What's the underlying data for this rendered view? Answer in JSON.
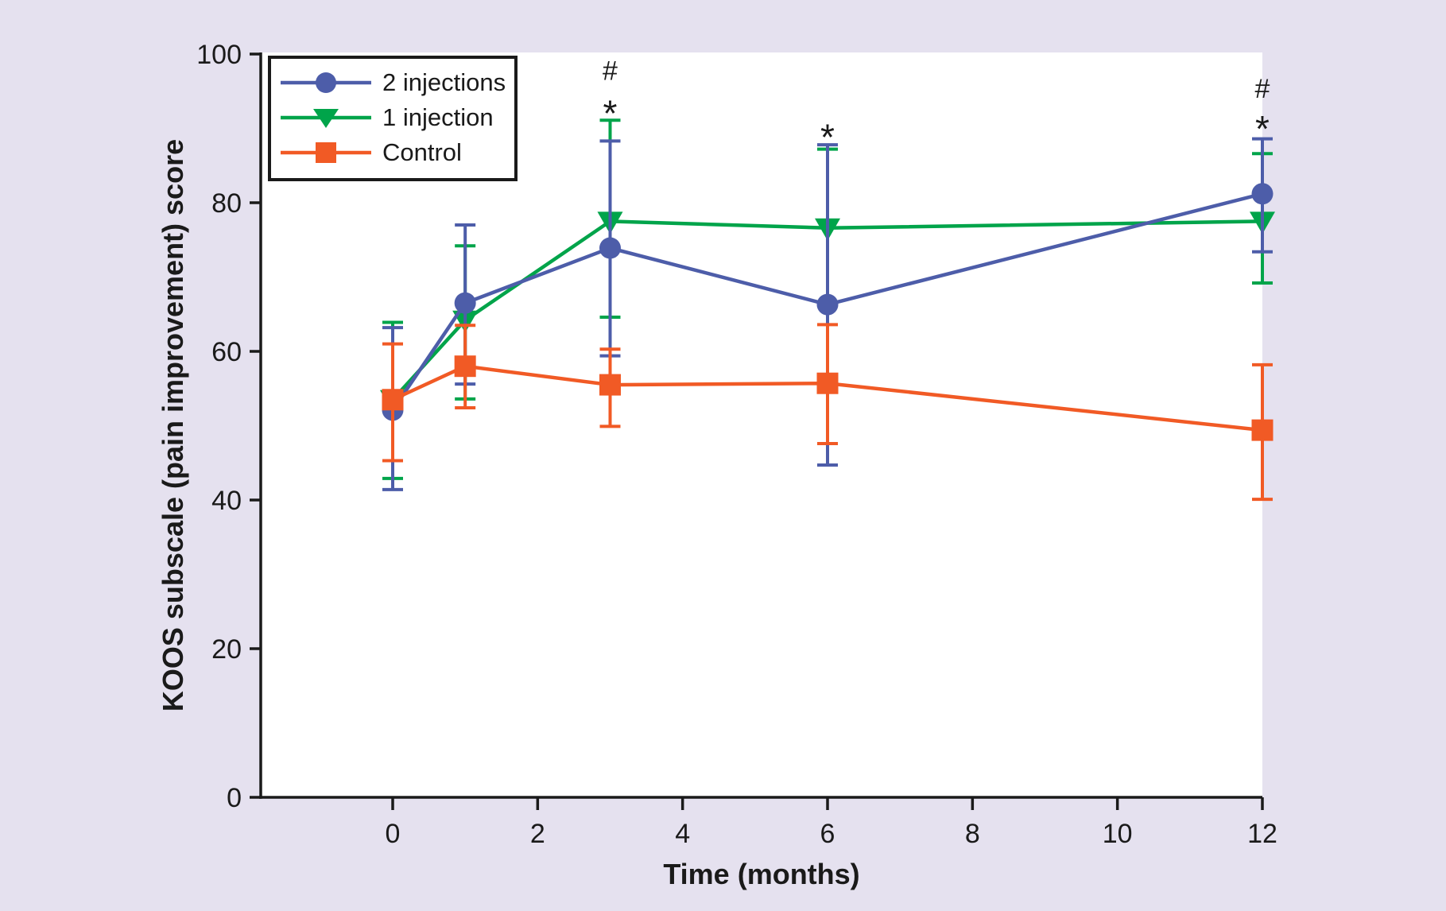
{
  "figure": {
    "background": "#E5E1EF",
    "plot_background": "#FFFFFF",
    "axis_color": "#1A1A1A"
  },
  "chart_data": {
    "type": "line",
    "title": "",
    "xlabel": "Time (months)",
    "ylabel": "KOOS subscale (pain improvement) score",
    "x": [
      0,
      1,
      3,
      6,
      12
    ],
    "x_ticks": [
      0,
      2,
      4,
      6,
      8,
      10,
      12
    ],
    "y_ticks": [
      0,
      20,
      40,
      60,
      80,
      100
    ],
    "xlim": [
      -1.8,
      12
    ],
    "ylim": [
      0,
      100
    ],
    "grid": false,
    "legend_position": "upper left",
    "error_bars": true,
    "draw_order": [
      1,
      0,
      2
    ],
    "series": [
      {
        "name": "2 injections",
        "marker": "circle",
        "color": "#4D5DA9",
        "values": [
          52.1,
          66.5,
          73.9,
          66.3,
          81.2
        ],
        "err_low": [
          41.4,
          55.6,
          59.4,
          44.7,
          73.4
        ],
        "err_high": [
          63.2,
          77.0,
          88.3,
          87.8,
          88.6
        ]
      },
      {
        "name": "1 injection",
        "marker": "triangle-down",
        "color": "#00A44A",
        "values": [
          53.5,
          64.2,
          77.5,
          76.6,
          77.5
        ],
        "err_low": [
          42.9,
          53.6,
          64.6,
          66.3,
          69.2
        ],
        "err_high": [
          63.9,
          74.2,
          91.1,
          87.2,
          86.6
        ]
      },
      {
        "name": "Control",
        "marker": "square",
        "color": "#F15A25",
        "values": [
          53.5,
          58.0,
          55.5,
          55.7,
          49.4
        ],
        "err_low": [
          45.3,
          52.4,
          49.9,
          47.6,
          40.1
        ],
        "err_high": [
          61.0,
          63.5,
          60.3,
          63.6,
          58.2
        ]
      }
    ],
    "annotations": [
      {
        "x": 3,
        "symbol": "#",
        "value": 97.9
      },
      {
        "x": 3,
        "symbol": "*",
        "value": 92.9
      },
      {
        "x": 6,
        "symbol": "*",
        "value": 89.7
      },
      {
        "x": 12,
        "symbol": "#",
        "value": 95.5
      },
      {
        "x": 12,
        "symbol": "*",
        "value": 90.8
      }
    ]
  }
}
